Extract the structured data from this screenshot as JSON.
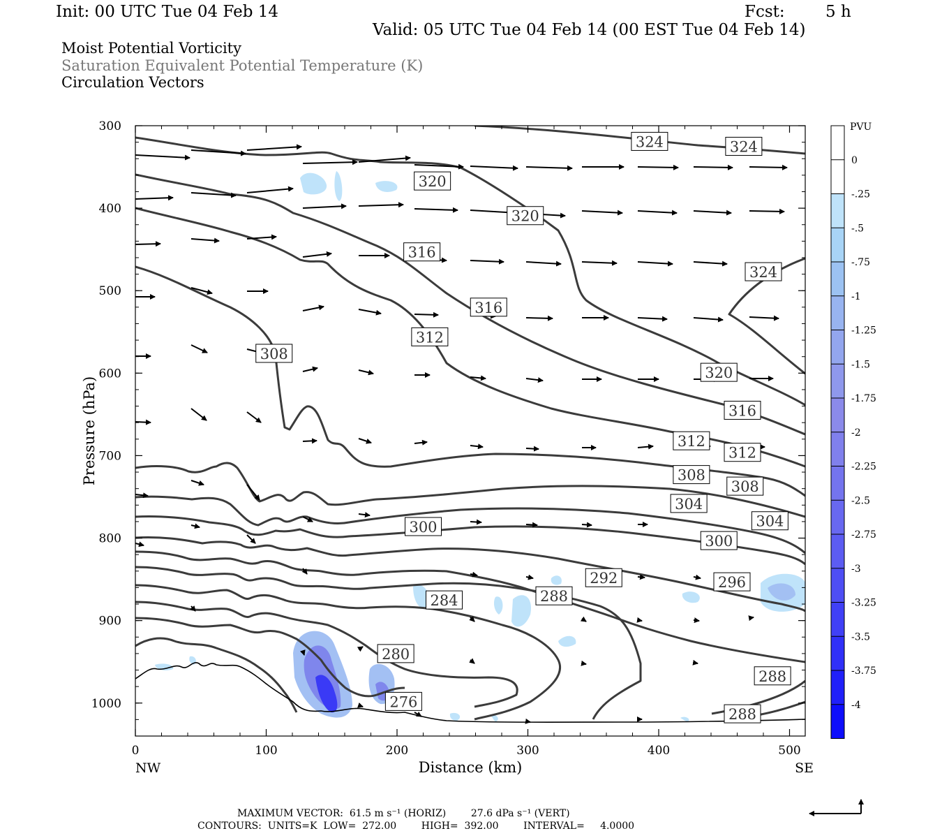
{
  "header": {
    "init": "Init: 00 UTC Tue 04 Feb 14",
    "fcst_label": "Fcst:",
    "fcst_value": "5 h",
    "valid": "Valid: 05 UTC Tue 04 Feb 14 (00 EST Tue 04 Feb 14)"
  },
  "fields": {
    "line1": "Moist Potential Vorticity",
    "line2": "Saturation Equivalent Potential Temperature (K)",
    "line3": "Circulation Vectors"
  },
  "footer": {
    "max_vector": "MAXIMUM VECTOR:  61.5 m s⁻¹ (HORIZ)        27.6 dPa s⁻¹ (VERT)",
    "contours": "CONTOURS:  UNITS=K  LOW=  272.00        HIGH=  392.00        INTERVAL=     4.0000"
  },
  "chart_data": {
    "type": "cross-section",
    "xlabel": "Distance (km)",
    "ylabel": "Pressure (hPa)",
    "x_ticks": [
      0,
      100,
      200,
      300,
      400,
      500
    ],
    "y_ticks": [
      300,
      400,
      500,
      600,
      700,
      800,
      900,
      1000
    ],
    "xlim": [
      0,
      512
    ],
    "ylim": [
      1040,
      300
    ],
    "x_end_labels": {
      "left": "NW",
      "right": "SE"
    },
    "colorbar": {
      "unit": "PVU",
      "labels": [
        "0",
        "-.25",
        "-.5",
        "-.75",
        "-1",
        "-1.25",
        "-1.5",
        "-1.75",
        "-2",
        "-2.25",
        "-2.5",
        "-2.75",
        "-3",
        "-3.25",
        "-3.5",
        "-3.75",
        "-4"
      ],
      "colors": [
        "#ffffff",
        "#ffffff",
        "#bfe3fa",
        "#a8d4f6",
        "#9cc2f2",
        "#98b4f0",
        "#93a6ee",
        "#8f98ec",
        "#8b8aea",
        "#8080ec",
        "#7474ee",
        "#6868f0",
        "#5c5cf2",
        "#4e4ef4",
        "#4040f6",
        "#3030f8",
        "#2020fa",
        "#0e0efc"
      ]
    },
    "contour_labels": [
      {
        "text": "324",
        "x": 393,
        "p": 319
      },
      {
        "text": "324",
        "x": 465,
        "p": 325
      },
      {
        "text": "320",
        "x": 227,
        "p": 367
      },
      {
        "text": "320",
        "x": 298,
        "p": 409
      },
      {
        "text": "324",
        "x": 480,
        "p": 477
      },
      {
        "text": "316",
        "x": 219,
        "p": 453
      },
      {
        "text": "316",
        "x": 270,
        "p": 520
      },
      {
        "text": "312",
        "x": 225,
        "p": 556
      },
      {
        "text": "308",
        "x": 106,
        "p": 576
      },
      {
        "text": "320",
        "x": 446,
        "p": 599
      },
      {
        "text": "316",
        "x": 464,
        "p": 645
      },
      {
        "text": "312",
        "x": 425,
        "p": 682
      },
      {
        "text": "312",
        "x": 464,
        "p": 696
      },
      {
        "text": "308",
        "x": 425,
        "p": 723
      },
      {
        "text": "308",
        "x": 466,
        "p": 737
      },
      {
        "text": "304",
        "x": 423,
        "p": 758
      },
      {
        "text": "304",
        "x": 485,
        "p": 779
      },
      {
        "text": "300",
        "x": 220,
        "p": 786
      },
      {
        "text": "300",
        "x": 446,
        "p": 803
      },
      {
        "text": "292",
        "x": 358,
        "p": 848
      },
      {
        "text": "296",
        "x": 456,
        "p": 853
      },
      {
        "text": "288",
        "x": 320,
        "p": 870
      },
      {
        "text": "284",
        "x": 236,
        "p": 875
      },
      {
        "text": "280",
        "x": 199,
        "p": 940
      },
      {
        "text": "288",
        "x": 487,
        "p": 967
      },
      {
        "text": "276",
        "x": 205,
        "p": 998
      },
      {
        "text": "288",
        "x": 464,
        "p": 1013
      }
    ],
    "contour_range": {
      "low": 272.0,
      "high": 392.0,
      "interval": 4.0,
      "units": "K"
    }
  }
}
